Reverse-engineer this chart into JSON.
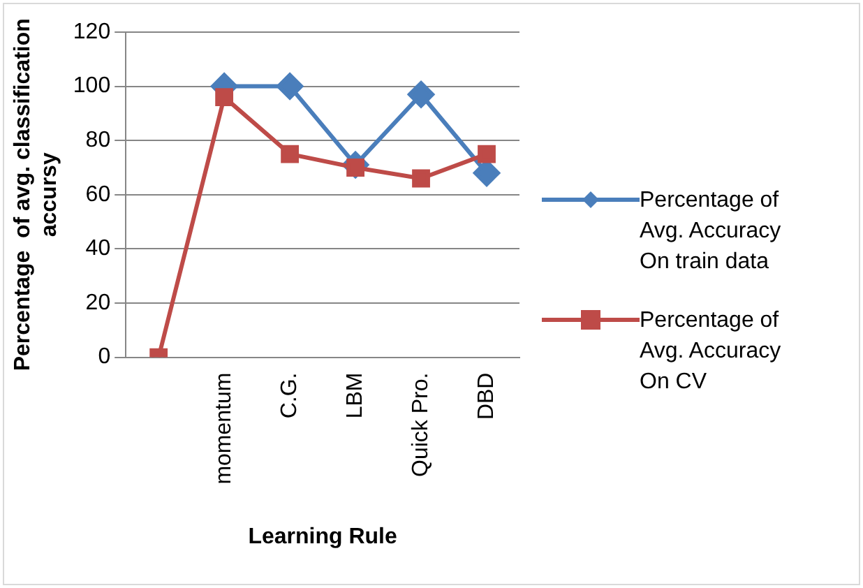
{
  "chart_data": {
    "type": "line",
    "xlabel": "Learning Rule",
    "ylabel": "Percentage  of avg. classification accursy",
    "categories": [
      null,
      "momentum",
      "C.G.",
      "LBM",
      "Quick Pro.",
      "DBD"
    ],
    "series": [
      {
        "name": "Percentage of Avg. Accuracy On train data",
        "color": "#4a7ebb",
        "marker": "diamond",
        "values": [
          null,
          100,
          100,
          71,
          97,
          68
        ]
      },
      {
        "name": "Percentage of Avg. Accuracy On CV",
        "color": "#be4b48",
        "marker": "square",
        "values": [
          0,
          96,
          75,
          70,
          66,
          75
        ]
      }
    ],
    "ylim": [
      0,
      120
    ],
    "yticks": [
      0,
      20,
      40,
      60,
      80,
      100,
      120
    ],
    "grid": "y",
    "legend": "right"
  }
}
